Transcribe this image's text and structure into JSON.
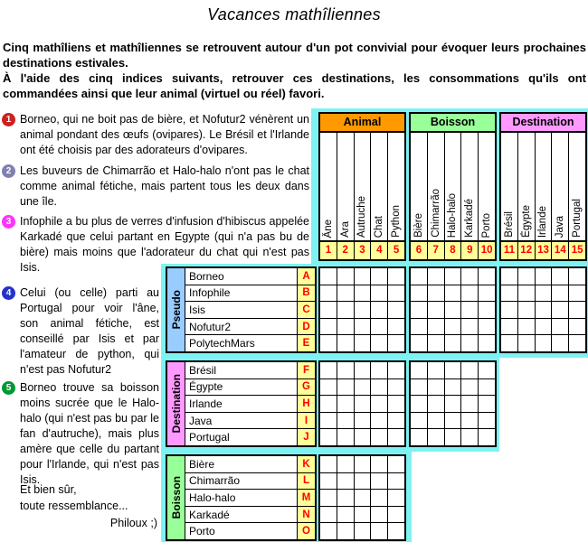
{
  "title": "Vacances mathîliennes",
  "intro": {
    "para1": "Cinq mathîliens et mathîliennes se retrouvent autour d'un pot convivial pour évoquer leurs prochaines destinations estivales.",
    "para2": "À l'aide des cinq indices suivants, retrouver ces destinations, les consommations qu'ils ont commandées ainsi que leur animal (virtuel ou réel) favori."
  },
  "clues": [
    {
      "num": "1",
      "color": "#cc2222",
      "text": "Borneo, qui ne boit pas de bière, et Nofutur2 vénèrent un animal pondant des œufs (ovipares). Le Brésil et l'Irlande ont été choisis par des adorateurs d'ovipares."
    },
    {
      "num": "2",
      "color": "#8080b2",
      "text": "Les buveurs de Chimarrão et Halo-halo n'ont pas le chat comme animal fétiche, mais partent tous les deux dans une île."
    },
    {
      "num": "3",
      "color": "#ff33ff",
      "text": "Infophile a bu plus de verres d'infusion d'hibiscus appelée Karkadé que celui partant en Egypte (qui n'a pas bu de bière) mais moins que l'adorateur du chat qui n'est pas Isis."
    },
    {
      "num": "4",
      "color": "#2233cc",
      "text": "Celui (ou celle) parti au Portugal pour voir l'âne, son animal fétiche, est conseillé par Isis et par l'amateur de python, qui n'est pas Nofutur2"
    },
    {
      "num": "5",
      "color": "#009933",
      "text": "Borneo trouve sa boisson moins sucrée que le Halo-halo (qui n'est pas bu par le fan d'autruche), mais plus amère que celle du partant pour l'Irlande, qui n'est pas Isis."
    }
  ],
  "closing": {
    "line1": "Et bien sûr,",
    "line2": "toute ressemblance...",
    "signature": "Philoux ;)"
  },
  "grid": {
    "column_groups": [
      {
        "label": "Animal",
        "color": "#ff9900",
        "columns": [
          "Âne",
          "Ara",
          "Autruche",
          "Chat",
          "Python"
        ],
        "numbers": [
          "1",
          "2",
          "3",
          "4",
          "5"
        ]
      },
      {
        "label": "Boisson",
        "color": "#99ff99",
        "columns": [
          "Bière",
          "Chimarrão",
          "Halo-halo",
          "Karkadé",
          "Porto"
        ],
        "numbers": [
          "6",
          "7",
          "8",
          "9",
          "10"
        ]
      },
      {
        "label": "Destination",
        "color": "#ff99ff",
        "columns": [
          "Brésil",
          "Égypte",
          "Irlande",
          "Java",
          "Portugal"
        ],
        "numbers": [
          "11",
          "12",
          "13",
          "14",
          "15"
        ]
      }
    ],
    "row_groups": [
      {
        "label": "Pseudo",
        "color": "#99ccff",
        "rows": [
          "Borneo",
          "Infophile",
          "Isis",
          "Nofutur2",
          "PolytechMars"
        ],
        "letters": [
          "A",
          "B",
          "C",
          "D",
          "E"
        ]
      },
      {
        "label": "Destination",
        "color": "#ff99ff",
        "rows": [
          "Brésil",
          "Égypte",
          "Irlande",
          "Java",
          "Portugal"
        ],
        "letters": [
          "F",
          "G",
          "H",
          "I",
          "J"
        ]
      },
      {
        "label": "Boisson",
        "color": "#99ff99",
        "rows": [
          "Bière",
          "Chimarrão",
          "Halo-halo",
          "Karkadé",
          "Porto"
        ],
        "letters": [
          "K",
          "L",
          "M",
          "N",
          "O"
        ]
      }
    ],
    "colors": {
      "panel_cyan": "#7ef2f2",
      "letter_bg": "#ffff99",
      "mark_red": "#ff0000"
    }
  }
}
